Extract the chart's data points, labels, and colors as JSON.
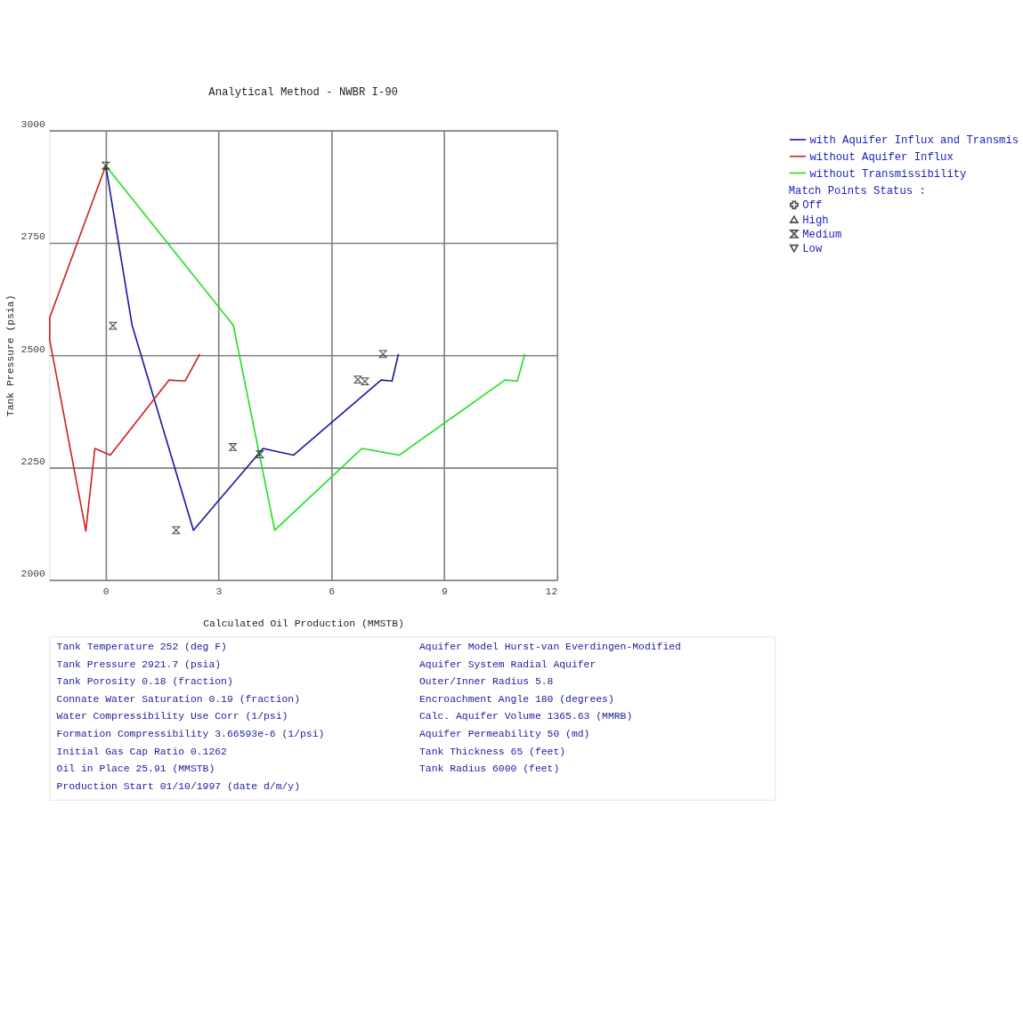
{
  "chart_data": {
    "type": "line",
    "title": "Analytical Method - NWBR I-90",
    "xlabel": "Calculated Oil Production (MMSTB)",
    "ylabel": "Tank Pressure (psia)",
    "xlim": [
      -1.5,
      12
    ],
    "xticks": [
      0,
      3,
      6,
      9,
      12
    ],
    "ylim": [
      2000,
      3000
    ],
    "yticks": [
      2000,
      2250,
      2500,
      2750,
      3000
    ],
    "grid": true,
    "legend": "right",
    "legend_title": "Match Points Status :",
    "series": [
      {
        "name": "with Aquifer Influx and Transmis",
        "color": "#1a1aa0",
        "x": [
          0,
          0.7,
          2.33,
          4.18,
          4.99,
          7.32,
          7.61,
          7.78
        ],
        "values": [
          2922,
          2567,
          2111,
          2293,
          2278,
          2445,
          2443,
          2503
        ]
      },
      {
        "name": "without Aquifer Influx",
        "color": "#d02020",
        "x": [
          0,
          -1.49,
          -1.49,
          -0.53,
          -0.29,
          0.12,
          1.68,
          2.11,
          2.5
        ],
        "values": [
          2922,
          2584,
          2534,
          2109,
          2293,
          2278,
          2445,
          2443,
          2503
        ]
      },
      {
        "name": "without Transmissibility",
        "color": "#20e020",
        "x": [
          0,
          3.39,
          4.49,
          6.81,
          7.8,
          10.61,
          10.94,
          11.14
        ],
        "values": [
          2922,
          2567,
          2111,
          2293,
          2278,
          2445,
          2443,
          2503
        ]
      },
      {
        "name": "Off",
        "color": "#000000",
        "type": "scatter",
        "marker": "cross"
      },
      {
        "name": "High",
        "color": "#000000",
        "type": "scatter",
        "marker": "triangle"
      },
      {
        "name": "Medium",
        "color": "#000000",
        "type": "scatter",
        "x": [
          0,
          0.19,
          1.87,
          3.38,
          4.1,
          6.7,
          6.89,
          7.37
        ],
        "values": [
          2922,
          2566,
          2111,
          2296,
          2280,
          2446,
          2442,
          2503
        ]
      },
      {
        "name": "Low",
        "color": "#000000",
        "type": "scatter",
        "marker": "triangle-down"
      }
    ],
    "annotations": [
      "Tank Temperature 252 (deg F)",
      "Tank Pressure 2921.7 (psia)",
      "Tank Porosity 0.18 (fraction)",
      "Connate Water Saturation 0.19 (fraction)",
      "Water Compressibility Use Corr (1/psi)",
      "Formation Compressibility 3.66593e-6 (1/psi)",
      "Initial Gas Cap Ratio 0.1262",
      "Oil in Place 25.91 (MMSTB)",
      "Production Start 01/10/1997 (date d/m/y)",
      "Aquifer Model Hurst-van Everdingen-Modified",
      "Aquifer System Radial Aquifer",
      "Outer/Inner Radius 5.8",
      "Encroachment Angle 180 (degrees)",
      "Calc. Aquifer Volume 1365.63 (MMRB)",
      "Aquifer Permeability 50 (md)",
      "Tank Thickness 65 (feet)",
      "Tank Radius 6000 (feet)"
    ]
  }
}
